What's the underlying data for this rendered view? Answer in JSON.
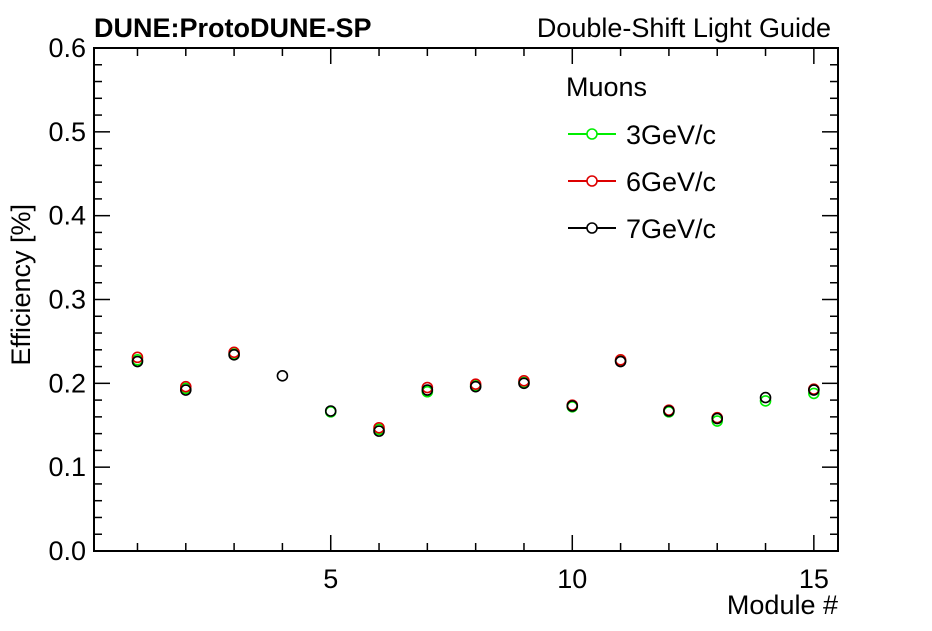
{
  "chart_data": {
    "type": "scatter",
    "title_left": "DUNE:ProtoDUNE-SP",
    "title_right": "Double-Shift Light Guide",
    "xlabel": "Module #",
    "ylabel": "Efficiency [%]",
    "xlim": [
      0.1,
      15.5
    ],
    "ylim": [
      0.0,
      0.6
    ],
    "x_ticks": [
      5,
      10,
      15
    ],
    "y_ticks": [
      0.0,
      0.1,
      0.2,
      0.3,
      0.4,
      0.5,
      0.6
    ],
    "x_tick_labels": [
      "5",
      "10",
      "15"
    ],
    "y_tick_labels": [
      "0.0",
      "0.1",
      "0.2",
      "0.3",
      "0.4",
      "0.5",
      "0.6"
    ],
    "grid": false,
    "legend": {
      "title": "Muons",
      "placement": "top-right",
      "entries": [
        "3GeV/c",
        "6GeV/c",
        "7GeV/c"
      ]
    },
    "series": [
      {
        "name": "3GeV/c",
        "color": "#00ee00",
        "x": [
          1,
          2,
          3,
          5,
          6,
          7,
          8,
          9,
          10,
          11,
          12,
          13,
          14,
          15
        ],
        "y": [
          0.228,
          0.194,
          0.235,
          0.166,
          0.145,
          0.19,
          0.197,
          0.201,
          0.172,
          0.227,
          0.166,
          0.155,
          0.179,
          0.188
        ]
      },
      {
        "name": "6GeV/c",
        "color": "#dd0000",
        "x": [
          1,
          2,
          3,
          6,
          7,
          8,
          9,
          10,
          11,
          12,
          13,
          15
        ],
        "y": [
          0.231,
          0.196,
          0.237,
          0.147,
          0.195,
          0.199,
          0.203,
          0.174,
          0.228,
          0.168,
          0.159,
          0.193
        ]
      },
      {
        "name": "7GeV/c",
        "color": "#000000",
        "x": [
          1,
          2,
          3,
          4,
          5,
          6,
          7,
          8,
          9,
          10,
          11,
          12,
          13,
          14,
          15
        ],
        "y": [
          0.226,
          0.192,
          0.234,
          0.209,
          0.167,
          0.143,
          0.192,
          0.196,
          0.2,
          0.173,
          0.226,
          0.167,
          0.158,
          0.183,
          0.192
        ]
      }
    ]
  }
}
